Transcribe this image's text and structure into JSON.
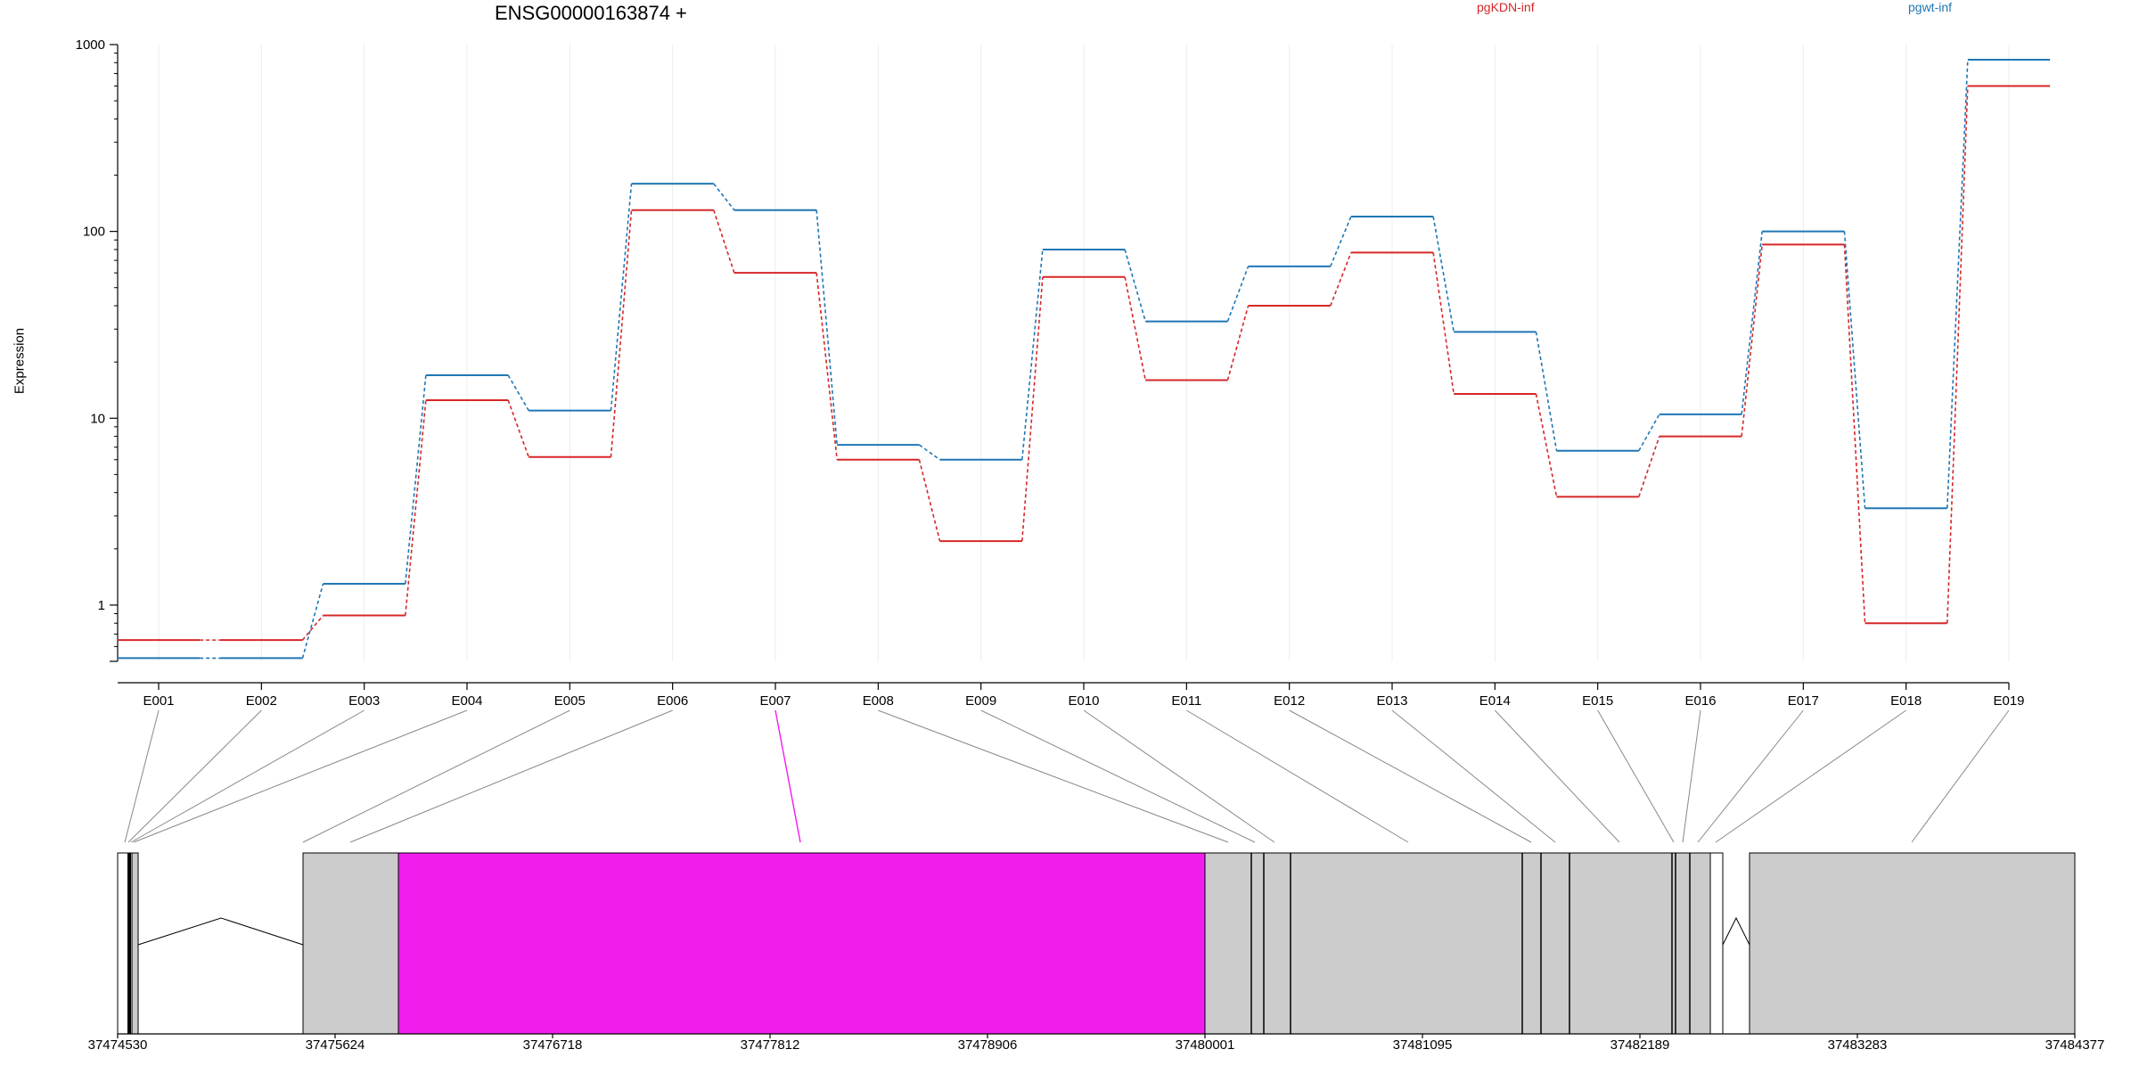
{
  "chart_data": {
    "type": "line",
    "title": "ENSG00000163874 +",
    "ylabel": "Expression",
    "yscale": "log",
    "ylim": [
      0.5,
      1000
    ],
    "yticks": [
      1,
      10,
      100,
      1000
    ],
    "categories": [
      "E001",
      "E002",
      "E003",
      "E004",
      "E005",
      "E006",
      "E007",
      "E008",
      "E009",
      "E010",
      "E011",
      "E012",
      "E013",
      "E014",
      "E015",
      "E016",
      "E017",
      "E018",
      "E019"
    ],
    "series": [
      {
        "name": "pgKDN-inf",
        "color": "#d62728",
        "values": [
          0.65,
          0.65,
          0.88,
          12.5,
          6.2,
          130,
          60,
          6.0,
          2.2,
          57,
          16,
          40,
          77,
          13.5,
          3.8,
          8.0,
          85,
          0.8,
          600
        ]
      },
      {
        "name": "pgwt-inf",
        "color": "#1f77b4",
        "values": [
          0.52,
          0.52,
          1.3,
          17,
          11,
          180,
          130,
          7.2,
          6.0,
          80,
          33,
          65,
          120,
          29,
          6.7,
          10.5,
          100,
          3.3,
          830
        ]
      }
    ],
    "grid": true,
    "gene_model": {
      "axis_ticks": [
        "37474530",
        "37475624",
        "37476718",
        "37477812",
        "37478906",
        "37480001",
        "37481095",
        "37482189",
        "37483283",
        "37484377"
      ],
      "highlight_exon": "E007",
      "highlight_color": "#f01ded",
      "exon_color": "#cccccc"
    }
  }
}
